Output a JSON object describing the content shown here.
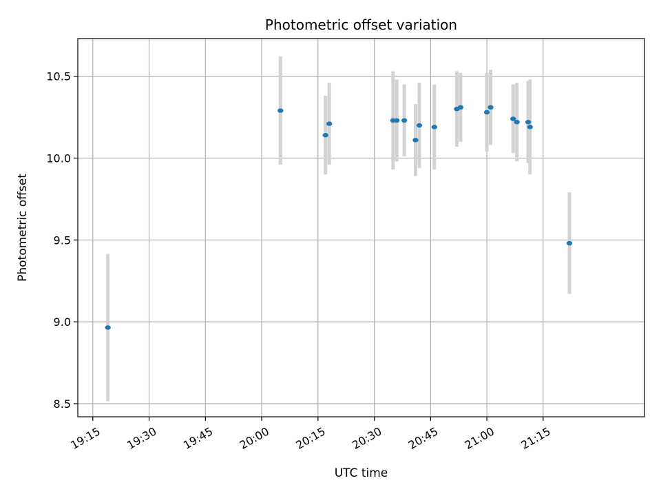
{
  "chart_data": {
    "type": "scatter",
    "title": "Photometric offset variation",
    "xlabel": "UTC time",
    "ylabel": "Photometric offset",
    "grid": true,
    "x_is_time": true,
    "xlim": [
      "19:11",
      "21:42"
    ],
    "ylim": [
      8.42,
      10.73
    ],
    "x_ticks": [
      "19:15",
      "19:30",
      "19:45",
      "20:00",
      "20:15",
      "20:30",
      "20:45",
      "21:00",
      "21:15"
    ],
    "y_ticks": [
      8.5,
      9.0,
      9.5,
      10.0,
      10.5
    ],
    "y_tick_labels": [
      "8.5",
      "9.0",
      "9.5",
      "10.0",
      "10.5"
    ],
    "colors": {
      "point": "#1f77b4",
      "errorbar": "#d3d3d3",
      "grid": "#b0b0b0"
    },
    "points": [
      {
        "x": "19:19",
        "y": 8.965,
        "err": 0.45
      },
      {
        "x": "20:05",
        "y": 10.29,
        "err": 0.33
      },
      {
        "x": "20:17",
        "y": 10.14,
        "err": 0.24
      },
      {
        "x": "20:18",
        "y": 10.21,
        "err": 0.25
      },
      {
        "x": "20:35",
        "y": 10.23,
        "err": 0.3
      },
      {
        "x": "20:36",
        "y": 10.23,
        "err": 0.25
      },
      {
        "x": "20:38",
        "y": 10.23,
        "err": 0.22
      },
      {
        "x": "20:41",
        "y": 10.11,
        "err": 0.22
      },
      {
        "x": "20:42",
        "y": 10.2,
        "err": 0.26
      },
      {
        "x": "20:46",
        "y": 10.19,
        "err": 0.26
      },
      {
        "x": "20:52",
        "y": 10.3,
        "err": 0.23
      },
      {
        "x": "20:53",
        "y": 10.31,
        "err": 0.21
      },
      {
        "x": "21:00",
        "y": 10.28,
        "err": 0.24
      },
      {
        "x": "21:01",
        "y": 10.31,
        "err": 0.23
      },
      {
        "x": "21:07",
        "y": 10.24,
        "err": 0.21
      },
      {
        "x": "21:08",
        "y": 10.22,
        "err": 0.24
      },
      {
        "x": "21:11",
        "y": 10.22,
        "err": 0.25
      },
      {
        "x": "21:11:30",
        "y": 10.19,
        "err": 0.29
      },
      {
        "x": "21:22",
        "y": 9.48,
        "err": 0.31
      }
    ]
  }
}
